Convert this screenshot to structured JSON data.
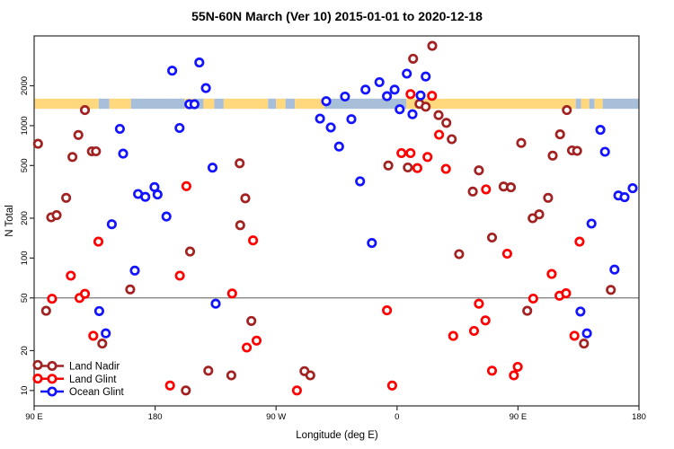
{
  "title": "55N-60N March (Ver 10)  2015-01-01 to 2020-12-18",
  "legend": {
    "items": [
      {
        "label": "Land Nadir",
        "color": "#A22222"
      },
      {
        "label": "Land Glint",
        "color": "#FF0000"
      },
      {
        "label": "Ocean Glint",
        "color": "#1313FF"
      }
    ]
  },
  "chart_data": {
    "type": "scatter",
    "title": "55N-60N March (Ver 10)  2015-01-01 to 2020-12-18",
    "xlabel": "Longitude (deg E)",
    "ylabel": "N Total",
    "x_axis": {
      "min": 90,
      "max": 540,
      "ticks": [
        {
          "value": 90,
          "label": "90 E"
        },
        {
          "value": 180,
          "label": "180"
        },
        {
          "value": 270,
          "label": "90 W"
        },
        {
          "value": 360,
          "label": "0"
        },
        {
          "value": 450,
          "label": "90 E"
        },
        {
          "value": 540,
          "label": "180"
        }
      ]
    },
    "y_axis": {
      "scale": "log",
      "min": 7.65,
      "max": 4760,
      "ticks": [
        10,
        20,
        50,
        100,
        200,
        500,
        1000,
        2000
      ]
    },
    "reference_line": {
      "y": 50,
      "color": "#7a7a7a"
    },
    "map_band": {
      "n_low": 1340,
      "n_high": 1600,
      "land_color": "#FFD87E",
      "ocean_color": "#A8BFD9",
      "segments": [
        {
          "from": 90,
          "to": 138,
          "type": "land"
        },
        {
          "from": 138,
          "to": 146,
          "type": "ocean"
        },
        {
          "from": 146,
          "to": 162,
          "type": "land"
        },
        {
          "from": 162,
          "to": 202,
          "type": "ocean"
        },
        {
          "from": 202,
          "to": 209,
          "type": "land"
        },
        {
          "from": 209,
          "to": 216,
          "type": "ocean"
        },
        {
          "from": 216,
          "to": 224,
          "type": "land"
        },
        {
          "from": 224,
          "to": 231,
          "type": "ocean"
        },
        {
          "from": 231,
          "to": 264,
          "type": "land"
        },
        {
          "from": 264,
          "to": 270,
          "type": "ocean"
        },
        {
          "from": 270,
          "to": 277,
          "type": "land"
        },
        {
          "from": 277,
          "to": 284,
          "type": "ocean"
        },
        {
          "from": 284,
          "to": 306,
          "type": "land"
        },
        {
          "from": 306,
          "to": 367,
          "type": "ocean"
        },
        {
          "from": 367,
          "to": 493,
          "type": "land"
        },
        {
          "from": 493,
          "to": 497,
          "type": "ocean"
        },
        {
          "from": 497,
          "to": 503,
          "type": "land"
        },
        {
          "from": 503,
          "to": 507,
          "type": "ocean"
        },
        {
          "from": 507,
          "to": 513,
          "type": "land"
        },
        {
          "from": 513,
          "to": 540,
          "type": "ocean"
        }
      ]
    },
    "series": [
      {
        "name": "Land Nadir",
        "color": "#A22222",
        "points": [
          [
            127.8,
            1310
          ],
          [
            122.9,
            850
          ],
          [
            92.9,
            730
          ],
          [
            132.9,
            640
          ],
          [
            136.0,
            640
          ],
          [
            118.5,
            580
          ],
          [
            113.8,
            285
          ],
          [
            102.7,
            203
          ],
          [
            106.7,
            211
          ],
          [
            242.9,
            520
          ],
          [
            247.1,
            283
          ],
          [
            243.3,
            177
          ],
          [
            206.0,
            112
          ],
          [
            98.9,
            40
          ],
          [
            161.5,
            58
          ],
          [
            140.7,
            22.6
          ],
          [
            202.9,
            10
          ],
          [
            219.6,
            14.1
          ],
          [
            236.7,
            13
          ],
          [
            251.6,
            33.5
          ],
          [
            291.1,
            14
          ],
          [
            295.5,
            13
          ],
          [
            92.7,
            15.6
          ],
          [
            386.2,
            4000
          ],
          [
            372.0,
            3200
          ],
          [
            376.7,
            1460
          ],
          [
            381.3,
            1390
          ],
          [
            390.9,
            1200
          ],
          [
            396.7,
            1050
          ],
          [
            400.7,
            790
          ],
          [
            353.5,
            500
          ],
          [
            368.0,
            483
          ],
          [
            420.9,
            460
          ],
          [
            416.4,
            318
          ],
          [
            439.3,
            347
          ],
          [
            444.7,
            342
          ],
          [
            452.4,
            740
          ],
          [
            481.3,
            860
          ],
          [
            486.4,
            1310
          ],
          [
            475.8,
            594
          ],
          [
            490.2,
            650
          ],
          [
            494.0,
            645
          ],
          [
            460.9,
            200
          ],
          [
            465.8,
            214
          ],
          [
            472.4,
            285
          ],
          [
            430.7,
            143
          ],
          [
            406.2,
            107
          ],
          [
            499.1,
            22.6
          ],
          [
            456.9,
            40
          ],
          [
            519.1,
            57.5
          ]
        ]
      },
      {
        "name": "Land Glint",
        "color": "#FF0000",
        "points": [
          [
            103.3,
            49.3
          ],
          [
            123.8,
            50
          ],
          [
            127.8,
            53.7
          ],
          [
            117.3,
            73.6
          ],
          [
            137.8,
            133
          ],
          [
            203.3,
            349
          ],
          [
            134.0,
            25.9
          ],
          [
            191.1,
            10.9
          ],
          [
            237.3,
            54
          ],
          [
            248.2,
            21.1
          ],
          [
            255.5,
            23.8
          ],
          [
            252.9,
            136
          ],
          [
            285.5,
            10
          ],
          [
            198.4,
            73.6
          ],
          [
            92.7,
            12.3
          ],
          [
            370.0,
            1730
          ],
          [
            386.0,
            1680
          ],
          [
            375.1,
            478
          ],
          [
            396.4,
            471
          ],
          [
            426.2,
            330
          ],
          [
            442.0,
            108
          ],
          [
            495.8,
            133
          ],
          [
            475.1,
            75.8
          ],
          [
            391.3,
            855
          ],
          [
            363.3,
            620
          ],
          [
            370.0,
            620
          ],
          [
            382.7,
            580
          ],
          [
            352.5,
            40.3
          ],
          [
            420.9,
            45.2
          ],
          [
            425.8,
            33.8
          ],
          [
            417.3,
            28.2
          ],
          [
            401.8,
            25.8
          ],
          [
            461.3,
            49.4
          ],
          [
            480.9,
            52
          ],
          [
            485.8,
            54.2
          ],
          [
            492.0,
            25.9
          ],
          [
            430.7,
            14.1
          ],
          [
            449.8,
            15.1
          ],
          [
            446.9,
            13
          ],
          [
            356.4,
            10.9
          ]
        ]
      },
      {
        "name": "Ocean Glint",
        "color": "#1313FF",
        "points": [
          [
            192.7,
            2600
          ],
          [
            212.9,
            3000
          ],
          [
            217.8,
            1920
          ],
          [
            205.5,
            1450
          ],
          [
            209.3,
            1450
          ],
          [
            307.3,
            1530
          ],
          [
            302.7,
            1130
          ],
          [
            310.7,
            970
          ],
          [
            153.8,
            945
          ],
          [
            156.2,
            615
          ],
          [
            198.2,
            960
          ],
          [
            147.8,
            180
          ],
          [
            167.3,
            305
          ],
          [
            172.7,
            290
          ],
          [
            179.5,
            344
          ],
          [
            181.8,
            302
          ],
          [
            188.4,
            206
          ],
          [
            222.7,
            482
          ],
          [
            164.9,
            80.5
          ],
          [
            138.4,
            39.8
          ],
          [
            143.3,
            27
          ],
          [
            225.1,
            45.2
          ],
          [
            316.9,
            695
          ],
          [
            321.3,
            1660
          ],
          [
            326.0,
            1120
          ],
          [
            332.5,
            380
          ],
          [
            336.5,
            1870
          ],
          [
            346.9,
            2130
          ],
          [
            352.5,
            1670
          ],
          [
            358.2,
            1870
          ],
          [
            367.3,
            2470
          ],
          [
            381.3,
            2350
          ],
          [
            377.5,
            1690
          ],
          [
            362.0,
            1330
          ],
          [
            371.5,
            1220
          ],
          [
            341.3,
            130
          ],
          [
            504.7,
            182
          ],
          [
            511.3,
            930
          ],
          [
            514.7,
            635
          ],
          [
            524.7,
            297
          ],
          [
            529.3,
            288
          ],
          [
            535.3,
            337
          ],
          [
            496.5,
            39.5
          ],
          [
            501.3,
            27
          ],
          [
            521.8,
            81.8
          ]
        ]
      }
    ]
  }
}
